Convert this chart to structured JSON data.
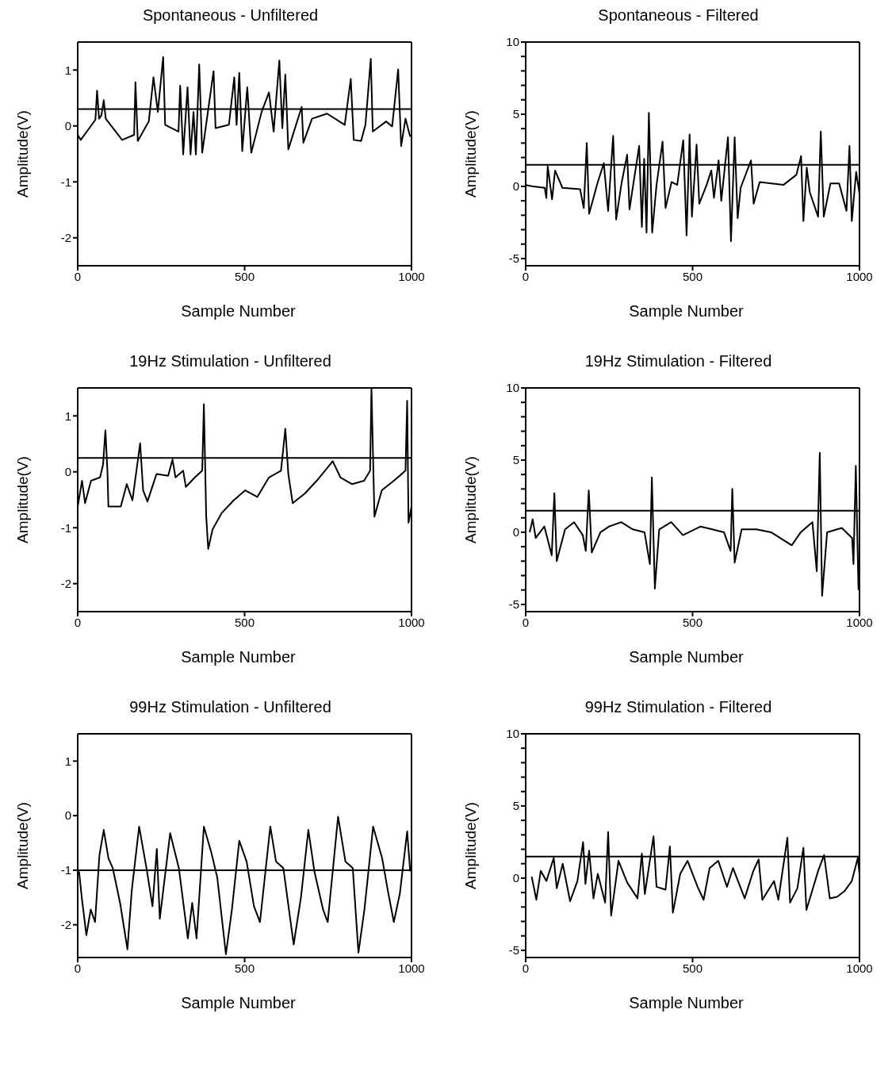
{
  "chart_data": [
    {
      "type": "line",
      "title": "Spontaneous - Unfiltered",
      "xlabel": "Sample Number",
      "ylabel": "Amplitude(V)",
      "xlim": [
        0,
        1000
      ],
      "xticks": [
        0,
        500,
        1000
      ],
      "ylim": [
        -2.5,
        1.5
      ],
      "yticks": [
        -2,
        -1,
        0,
        1
      ],
      "ref_lines": [
        {
          "axis": "y",
          "value": 0.3,
          "color": "#000000"
        }
      ],
      "x": [
        0,
        9,
        53,
        58,
        64,
        71,
        78,
        84,
        133,
        169,
        173,
        180,
        213,
        227,
        240,
        256,
        262,
        302,
        307,
        316,
        329,
        338,
        347,
        354,
        364,
        373,
        407,
        413,
        453,
        469,
        476,
        484,
        493,
        508,
        520,
        551,
        573,
        587,
        604,
        613,
        622,
        631,
        671,
        676,
        702,
        747,
        800,
        818,
        827,
        849,
        862,
        878,
        884,
        924,
        942,
        960,
        969,
        982,
        996
      ],
      "series": [
        {
          "color": "#000000",
          "values": [
            -0.16,
            -0.25,
            0.11,
            0.63,
            0.13,
            0.19,
            0.46,
            0.13,
            -0.25,
            -0.16,
            0.78,
            -0.27,
            0.08,
            0.87,
            0.25,
            1.23,
            0.02,
            -0.1,
            0.72,
            -0.51,
            0.69,
            -0.51,
            0.25,
            -0.51,
            1.1,
            -0.48,
            0.98,
            -0.04,
            0.02,
            0.87,
            0.02,
            0.95,
            -0.45,
            0.69,
            -0.48,
            0.25,
            0.6,
            -0.1,
            1.17,
            -0.04,
            0.92,
            -0.42,
            0.34,
            -0.3,
            0.13,
            0.22,
            0.02,
            0.84,
            -0.25,
            -0.27,
            0.02,
            1.2,
            -0.1,
            0.08,
            -0.01,
            1.01,
            -0.36,
            0.13,
            -0.19
          ]
        }
      ]
    },
    {
      "type": "line",
      "title": "Spontaneous - Filtered",
      "xlabel": "Sample Number",
      "ylabel": "Amplitude(V)",
      "xlim": [
        0,
        1000
      ],
      "xticks": [
        0,
        500,
        1000
      ],
      "ylim": [
        -5.5,
        10
      ],
      "yticks": [
        -5,
        {
          "value": -4,
          "label": null
        },
        {
          "value": -3,
          "label": null
        },
        {
          "value": -2,
          "label": null
        },
        {
          "value": -1,
          "label": null
        },
        0,
        {
          "value": 1,
          "label": null
        },
        {
          "value": 2,
          "label": null
        },
        {
          "value": 3,
          "label": null
        },
        {
          "value": 4,
          "label": null
        },
        5,
        {
          "value": 6,
          "label": null
        },
        {
          "value": 7,
          "label": null
        },
        {
          "value": 8,
          "label": null
        },
        {
          "value": 9,
          "label": null
        },
        10
      ],
      "ref_lines": [
        {
          "axis": "y",
          "value": 1.5,
          "color": "#000000"
        }
      ],
      "x": [
        0,
        22,
        57,
        62,
        66,
        79,
        88,
        110,
        163,
        174,
        183,
        190,
        216,
        234,
        247,
        262,
        271,
        287,
        304,
        311,
        322,
        340,
        348,
        355,
        362,
        369,
        379,
        392,
        410,
        419,
        437,
        454,
        472,
        482,
        491,
        498,
        512,
        520,
        542,
        556,
        564,
        578,
        586,
        606,
        615,
        626,
        635,
        644,
        675,
        683,
        701,
        772,
        811,
        825,
        832,
        842,
        851,
        876,
        884,
        893,
        913,
        939,
        961,
        970,
        977,
        990,
        1000
      ],
      "series": [
        {
          "color": "#000000",
          "values": [
            0.1,
            0,
            -0.1,
            -0.8,
            1.4,
            -0.9,
            1.1,
            -0.1,
            -0.2,
            -1.5,
            3,
            -1.9,
            0.3,
            1.6,
            -1.7,
            3.5,
            -2.3,
            0.2,
            2.2,
            -1.6,
            0.1,
            2.8,
            -2.8,
            1.9,
            -3.2,
            5.1,
            -3.2,
            0.1,
            3.1,
            -1.5,
            0.3,
            0.1,
            3.2,
            -3.4,
            3.6,
            -2.1,
            2.9,
            -1.2,
            0.1,
            1.1,
            -0.8,
            1.8,
            -1,
            3.4,
            -3.8,
            3.4,
            -2.2,
            -0.1,
            1.8,
            -1.2,
            0.3,
            0.1,
            0.8,
            2.1,
            -2.4,
            1.3,
            -0.4,
            -2.1,
            3.8,
            -2.1,
            0.2,
            0.2,
            -1.7,
            2.8,
            -2.4,
            1,
            -0.5
          ]
        }
      ]
    },
    {
      "type": "line",
      "title": "19Hz Stimulation - Unfiltered",
      "xlabel": "Sample Number",
      "ylabel": "Amplitude(V)",
      "xlim": [
        0,
        1000
      ],
      "xticks": [
        0,
        500,
        1000
      ],
      "ylim": [
        -2.5,
        1.5
      ],
      "yticks": [
        -2,
        -1,
        0,
        1
      ],
      "ref_lines": [
        {
          "axis": "y",
          "value": 0.25,
          "color": "#000000"
        }
      ],
      "x": [
        0,
        13,
        22,
        40,
        67,
        76,
        83,
        89,
        92,
        129,
        147,
        164,
        187,
        196,
        209,
        236,
        271,
        284,
        293,
        316,
        324,
        351,
        373,
        378,
        385,
        391,
        404,
        431,
        467,
        502,
        538,
        573,
        609,
        622,
        631,
        644,
        680,
        716,
        764,
        787,
        822,
        858,
        876,
        880,
        889,
        911,
        947,
        982,
        987,
        991,
        1000
      ],
      "series": [
        {
          "color": "#000000",
          "values": [
            -0.62,
            -0.16,
            -0.56,
            -0.16,
            -0.1,
            0.13,
            0.74,
            0.02,
            -0.62,
            -0.62,
            -0.22,
            -0.51,
            0.51,
            -0.33,
            -0.53,
            -0.04,
            -0.07,
            0.22,
            -0.1,
            0.02,
            -0.27,
            -0.1,
            0.02,
            1.21,
            -0.8,
            -1.38,
            -1.03,
            -0.74,
            -0.51,
            -0.33,
            -0.45,
            -0.1,
            0.02,
            0.77,
            -0.04,
            -0.56,
            -0.39,
            -0.16,
            0.19,
            -0.1,
            -0.22,
            -0.16,
            0.02,
            1.5,
            -0.8,
            -0.33,
            -0.16,
            0.02,
            1.27,
            -0.91,
            -0.62
          ]
        }
      ]
    },
    {
      "type": "line",
      "title": "19Hz Stimulation - Filtered",
      "xlabel": "Sample Number",
      "ylabel": "Amplitude(V)",
      "xlim": [
        0,
        1000
      ],
      "xticks": [
        0,
        500,
        1000
      ],
      "ylim": [
        -5.5,
        10
      ],
      "yticks": [
        -5,
        {
          "value": -4,
          "label": null
        },
        {
          "value": -3,
          "label": null
        },
        {
          "value": -2,
          "label": null
        },
        {
          "value": -1,
          "label": null
        },
        0,
        {
          "value": 1,
          "label": null
        },
        {
          "value": 2,
          "label": null
        },
        {
          "value": 3,
          "label": null
        },
        {
          "value": 4,
          "label": null
        },
        5,
        {
          "value": 6,
          "label": null
        },
        {
          "value": 7,
          "label": null
        },
        {
          "value": 8,
          "label": null
        },
        {
          "value": 9,
          "label": null
        },
        10
      ],
      "ref_lines": [
        {
          "axis": "y",
          "value": 1.5,
          "color": "#000000"
        }
      ],
      "x": [
        12,
        21,
        30,
        56,
        78,
        86,
        93,
        118,
        145,
        171,
        180,
        189,
        198,
        224,
        250,
        286,
        321,
        356,
        372,
        378,
        387,
        400,
        436,
        471,
        524,
        559,
        594,
        614,
        619,
        626,
        647,
        691,
        735,
        797,
        824,
        859,
        872,
        881,
        888,
        903,
        947,
        978,
        982,
        989,
        997
      ],
      "series": [
        {
          "color": "#000000",
          "values": [
            0,
            0.9,
            -0.4,
            0.4,
            -1.6,
            2.7,
            -2,
            0.2,
            0.7,
            -0.2,
            -1.3,
            2.9,
            -1.4,
            0,
            0.4,
            0.7,
            0.2,
            0,
            -2.2,
            3.8,
            -3.9,
            0.2,
            0.7,
            -0.2,
            0.4,
            0.2,
            0,
            -1.3,
            3,
            -2.1,
            0.2,
            0.2,
            0,
            -0.9,
            0,
            0.7,
            -2.7,
            5.5,
            -4.4,
            0,
            0.3,
            -0.4,
            -2.2,
            4.6,
            -4
          ]
        }
      ]
    },
    {
      "type": "line",
      "title": "99Hz Stimulation - Unfiltered",
      "xlabel": "Sample Number",
      "ylabel": "Amplitude(V)",
      "xlim": [
        0,
        1000
      ],
      "xticks": [
        0,
        500,
        1000
      ],
      "ylim": [
        -2.6,
        1.5
      ],
      "yticks": [
        -2,
        -1,
        0,
        1
      ],
      "ref_lines": [
        {
          "axis": "y",
          "value": -1,
          "color": "#000000"
        }
      ],
      "x": [
        4,
        12,
        26,
        39,
        52,
        65,
        78,
        92,
        105,
        127,
        149,
        162,
        184,
        206,
        224,
        237,
        246,
        277,
        303,
        330,
        343,
        356,
        378,
        400,
        418,
        444,
        462,
        484,
        506,
        528,
        546,
        577,
        594,
        616,
        647,
        669,
        691,
        709,
        735,
        749,
        780,
        802,
        824,
        841,
        859,
        885,
        912,
        929,
        947,
        965,
        987,
        996
      ],
      "series": [
        {
          "color": "#000000",
          "values": [
            -1.02,
            -1.49,
            -2.19,
            -1.72,
            -1.95,
            -0.73,
            -0.26,
            -0.78,
            -0.96,
            -1.6,
            -2.45,
            -1.37,
            -0.2,
            -0.96,
            -1.66,
            -0.61,
            -1.89,
            -0.32,
            -0.96,
            -2.25,
            -1.6,
            -2.25,
            -0.2,
            -0.67,
            -1.13,
            -2.54,
            -1.72,
            -0.46,
            -0.84,
            -1.66,
            -1.95,
            -0.2,
            -0.84,
            -0.96,
            -2.36,
            -1.49,
            -0.26,
            -1.02,
            -1.72,
            -1.95,
            -0.02,
            -0.84,
            -0.96,
            -2.51,
            -1.72,
            -0.2,
            -0.78,
            -1.37,
            -1.95,
            -1.43,
            -0.29,
            -1.02
          ]
        }
      ]
    },
    {
      "type": "line",
      "title": "99Hz Stimulation - Filtered",
      "xlabel": "Sample Number",
      "ylabel": "Amplitude(V)",
      "xlim": [
        0,
        1000
      ],
      "xticks": [
        0,
        500,
        1000
      ],
      "ylim": [
        -5.5,
        10
      ],
      "yticks": [
        -5,
        {
          "value": -4,
          "label": null
        },
        {
          "value": -3,
          "label": null
        },
        {
          "value": -2,
          "label": null
        },
        {
          "value": -1,
          "label": null
        },
        0,
        {
          "value": 1,
          "label": null
        },
        {
          "value": 2,
          "label": null
        },
        {
          "value": 3,
          "label": null
        },
        {
          "value": 4,
          "label": null
        },
        5,
        {
          "value": 6,
          "label": null
        },
        {
          "value": 7,
          "label": null
        },
        {
          "value": 8,
          "label": null
        },
        {
          "value": 9,
          "label": null
        },
        10
      ],
      "ref_lines": [
        {
          "axis": "y",
          "value": 1.5,
          "color": "#000000"
        }
      ],
      "x": [
        18,
        32,
        45,
        62,
        84,
        93,
        111,
        133,
        155,
        172,
        179,
        190,
        203,
        216,
        238,
        247,
        256,
        278,
        304,
        335,
        348,
        357,
        383,
        392,
        419,
        432,
        441,
        463,
        485,
        515,
        533,
        551,
        577,
        603,
        621,
        656,
        682,
        698,
        709,
        744,
        757,
        784,
        792,
        814,
        832,
        841,
        876,
        894,
        911,
        933,
        955,
        977,
        995,
        1000
      ],
      "series": [
        {
          "color": "#000000",
          "values": [
            0.1,
            -1.5,
            0.5,
            -0.2,
            1.4,
            -0.7,
            1,
            -1.6,
            -0.2,
            2.5,
            -0.4,
            1.9,
            -1.4,
            0.3,
            -1.7,
            3.2,
            -2.6,
            1.2,
            -0.3,
            -1.4,
            1.7,
            -1.1,
            2.9,
            -0.6,
            -0.8,
            2.2,
            -2.4,
            0.3,
            1.2,
            -0.6,
            -1.5,
            0.7,
            1.2,
            -0.6,
            0.7,
            -1.4,
            0.5,
            1.3,
            -1.5,
            -0.2,
            -1.5,
            2.8,
            -1.7,
            -0.7,
            2.1,
            -2.2,
            0.5,
            1.6,
            -1.4,
            -1.3,
            -0.9,
            -0.2,
            1.4,
            0.3
          ]
        }
      ]
    }
  ]
}
